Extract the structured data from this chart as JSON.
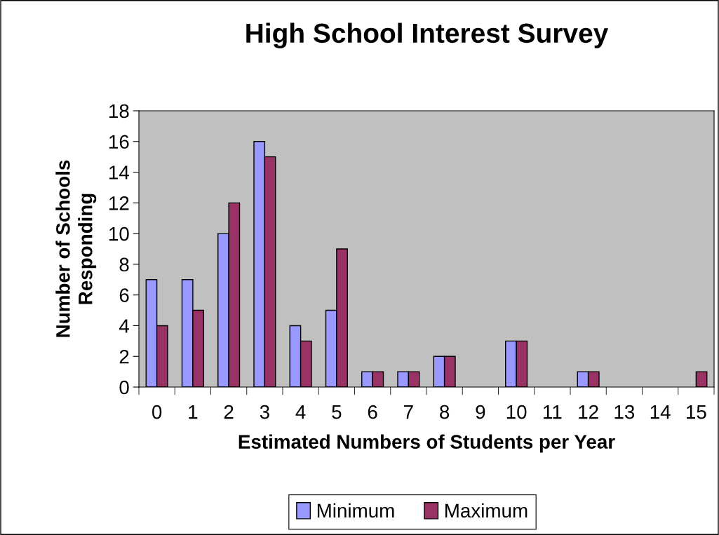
{
  "chart_data": {
    "type": "bar",
    "title": "High School Interest Survey",
    "xlabel": "Estimated Numbers of Students per Year",
    "ylabel": "Number of Schools\nResponding",
    "categories": [
      "0",
      "1",
      "2",
      "3",
      "4",
      "5",
      "6",
      "7",
      "8",
      "9",
      "10",
      "11",
      "12",
      "13",
      "14",
      "15"
    ],
    "series": [
      {
        "name": "Minimum",
        "color": "#9999ff",
        "values": [
          7,
          7,
          10,
          16,
          4,
          5,
          1,
          1,
          2,
          0,
          3,
          0,
          1,
          0,
          0,
          0
        ]
      },
      {
        "name": "Maximum",
        "color": "#993366",
        "values": [
          4,
          5,
          12,
          15,
          3,
          9,
          1,
          1,
          2,
          0,
          3,
          0,
          1,
          0,
          0,
          1
        ]
      }
    ],
    "ylim": [
      0,
      18
    ],
    "yticks": [
      0,
      2,
      4,
      6,
      8,
      10,
      12,
      14,
      16,
      18
    ],
    "grid": false,
    "legend": "bottom"
  }
}
